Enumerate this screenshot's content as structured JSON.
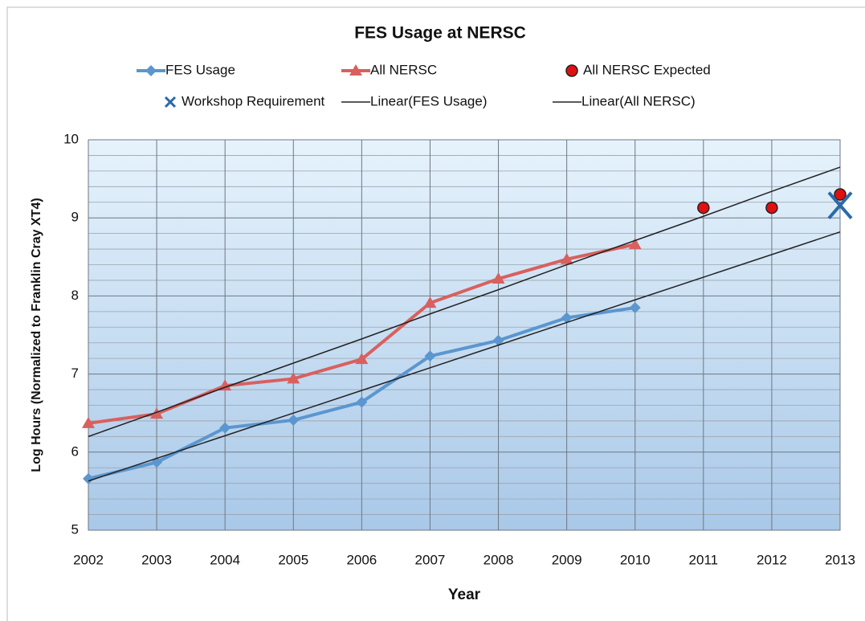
{
  "chart_data": {
    "type": "line",
    "title": "FES Usage at NERSC",
    "xlabel": "Year",
    "ylabel": "Log Hours (Normalized to Franklin Cray XT4)",
    "x": [
      2002,
      2003,
      2004,
      2005,
      2006,
      2007,
      2008,
      2009,
      2010,
      2011,
      2012,
      2013
    ],
    "xlim": [
      2002,
      2013
    ],
    "xticks": [
      2002,
      2003,
      2004,
      2005,
      2006,
      2007,
      2008,
      2009,
      2010,
      2011,
      2012,
      2013
    ],
    "ylim": [
      5,
      10
    ],
    "yticks": [
      5,
      6,
      7,
      8,
      9,
      10
    ],
    "grid": true,
    "series": [
      {
        "name": "FES Usage",
        "color": "#5b96cf",
        "marker": "diamond",
        "line": true,
        "values": [
          5.66,
          5.87,
          6.31,
          6.41,
          6.64,
          7.23,
          7.43,
          7.72,
          7.85,
          null,
          null,
          null
        ]
      },
      {
        "name": "All NERSC",
        "color": "#d9605e",
        "marker": "triangle",
        "line": true,
        "values": [
          6.37,
          6.49,
          6.85,
          6.94,
          7.19,
          7.91,
          8.22,
          8.47,
          8.66,
          null,
          null,
          null
        ]
      },
      {
        "name": "All NERSC Expected",
        "color": "#e01010",
        "marker": "circle",
        "line": false,
        "values": [
          null,
          null,
          null,
          null,
          null,
          null,
          null,
          null,
          null,
          9.13,
          9.13,
          9.3
        ]
      },
      {
        "name": "Workshop Requirement",
        "color": "#2a6aa8",
        "marker": "x",
        "line": false,
        "values": [
          null,
          null,
          null,
          null,
          null,
          null,
          null,
          null,
          null,
          null,
          null,
          9.16
        ]
      },
      {
        "name": "Linear(FES Usage)",
        "color": "#222222",
        "marker": "none",
        "line": true,
        "values": [
          5.63,
          5.92,
          6.21,
          6.5,
          6.79,
          7.08,
          7.37,
          7.66,
          7.95,
          8.24,
          8.53,
          8.82
        ]
      },
      {
        "name": "Linear(All NERSC)",
        "color": "#222222",
        "marker": "none",
        "line": true,
        "values": [
          6.2,
          6.51,
          6.83,
          7.14,
          7.45,
          7.77,
          8.08,
          8.4,
          8.71,
          9.02,
          9.34,
          9.65
        ]
      }
    ]
  }
}
